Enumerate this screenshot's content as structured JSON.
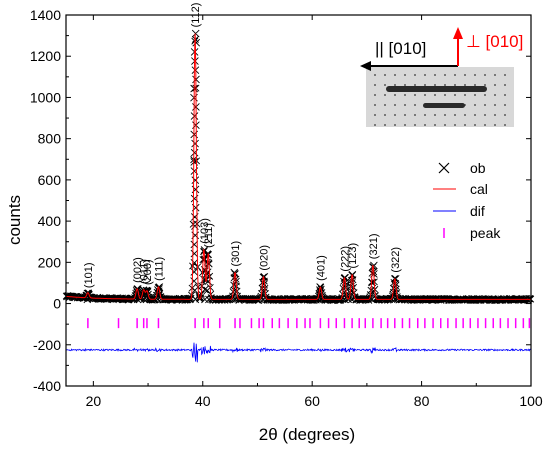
{
  "chart_data": {
    "type": "line",
    "xlabel": "2θ (degrees)",
    "ylabel": "counts",
    "xlim": [
      15,
      100
    ],
    "ylim": [
      -400,
      1400
    ],
    "xticks": [
      "20",
      "40",
      "60",
      "80",
      "100"
    ],
    "yticks": [
      "-400",
      "-200",
      "0",
      "200",
      "400",
      "600",
      "800",
      "1000",
      "1200",
      "1400"
    ],
    "legend": {
      "position": "right",
      "entries": [
        "ob",
        "cal",
        "dif",
        "peak"
      ]
    },
    "colors": {
      "ob": "#000000",
      "cal": "#ff0000",
      "dif": "#0000ff",
      "peak": "#ff00ff"
    },
    "peaks": [
      {
        "hkl": "(101)",
        "x": 19.0,
        "intensity": 25
      },
      {
        "hkl": "(002)",
        "x": 28.0,
        "intensity": 50
      },
      {
        "hkl": "(011)",
        "x": 29.2,
        "intensity": 45
      },
      {
        "hkl": "(200)",
        "x": 29.8,
        "intensity": 40
      },
      {
        "hkl": "(111)",
        "x": 31.9,
        "intensity": 60
      },
      {
        "hkl": "(112)",
        "x": 38.6,
        "intensity": 1290
      },
      {
        "hkl": "(103)",
        "x": 40.2,
        "intensity": 240
      },
      {
        "hkl": "(211)",
        "x": 41.0,
        "intensity": 220
      },
      {
        "hkl": "(301)",
        "x": 45.9,
        "intensity": 130
      },
      {
        "hkl": "(020)",
        "x": 51.1,
        "intensity": 110
      },
      {
        "hkl": "(401)",
        "x": 61.5,
        "intensity": 60
      },
      {
        "hkl": "(222)",
        "x": 65.9,
        "intensity": 105
      },
      {
        "hkl": "(123)",
        "x": 67.3,
        "intensity": 120
      },
      {
        "hkl": "(321)",
        "x": 71.1,
        "intensity": 165
      },
      {
        "hkl": "(322)",
        "x": 75.1,
        "intensity": 100
      }
    ],
    "background": 20,
    "dif_baseline": -225,
    "tick_row_y": -95,
    "peak_positions": [
      19.0,
      24.6,
      28.0,
      29.2,
      29.8,
      31.9,
      38.6,
      40.2,
      41.0,
      43.1,
      45.9,
      46.8,
      48.9,
      50.3,
      51.1,
      52.7,
      54.0,
      55.6,
      57.2,
      58.7,
      59.6,
      61.5,
      63.0,
      64.4,
      65.9,
      67.3,
      68.6,
      69.7,
      71.1,
      72.6,
      73.8,
      75.1,
      76.5,
      77.8,
      79.3,
      80.6,
      82.1,
      83.5,
      84.8,
      86.3,
      87.6,
      88.9,
      90.3,
      91.7,
      93.1,
      94.4,
      95.8,
      97.2,
      98.6,
      99.7
    ],
    "annotation": {
      "parallel": "|| [010]",
      "perpendicular": "⊥ [010]"
    }
  }
}
